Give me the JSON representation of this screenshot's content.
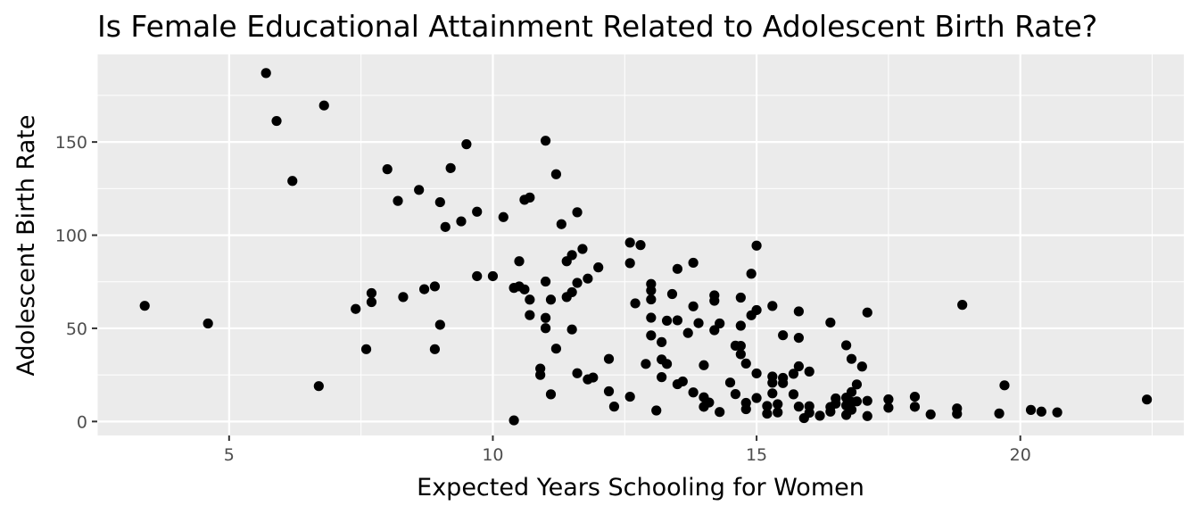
{
  "chart_data": {
    "type": "scatter",
    "title": "Is Female Educational Attainment Related to Adolescent Birth Rate?",
    "xlabel": "Expected Years Schooling for Women",
    "ylabel": "Adolescent Birth Rate",
    "xlim": [
      2.5,
      23.1
    ],
    "ylim": [
      -7.5,
      197
    ],
    "x_ticks": [
      5,
      10,
      15,
      20
    ],
    "y_ticks": [
      0,
      50,
      100,
      150
    ],
    "x_tick_labels": [
      "5",
      "10",
      "15",
      "20"
    ],
    "y_tick_labels": [
      "0",
      "50",
      "100",
      "150"
    ],
    "grid": true,
    "colors": {
      "panel": "#ebebeb",
      "grid": "#ffffff",
      "point": "#000000",
      "tick": "#333333",
      "tick_label": "#4d4d4d"
    },
    "points": [
      [
        3.4,
        62.1
      ],
      [
        4.6,
        52.6
      ],
      [
        5.7,
        187.0
      ],
      [
        5.9,
        161.3
      ],
      [
        6.2,
        129.1
      ],
      [
        6.8,
        169.6
      ],
      [
        6.7,
        19.0
      ],
      [
        7.4,
        60.4
      ],
      [
        7.6,
        38.8
      ],
      [
        7.7,
        68.9
      ],
      [
        7.7,
        64.1
      ],
      [
        8.0,
        135.4
      ],
      [
        8.2,
        118.4
      ],
      [
        8.3,
        66.8
      ],
      [
        8.6,
        124.3
      ],
      [
        8.7,
        71.0
      ],
      [
        8.9,
        72.5
      ],
      [
        8.9,
        38.8
      ],
      [
        9.0,
        117.7
      ],
      [
        9.0,
        51.9
      ],
      [
        9.1,
        104.4
      ],
      [
        9.2,
        136.0
      ],
      [
        9.4,
        107.4
      ],
      [
        9.5,
        148.8
      ],
      [
        9.7,
        112.6
      ],
      [
        9.7,
        78.0
      ],
      [
        10.0,
        78.0
      ],
      [
        10.2,
        109.7
      ],
      [
        10.4,
        71.7
      ],
      [
        10.4,
        0.6
      ],
      [
        10.5,
        86.0
      ],
      [
        10.5,
        72.5
      ],
      [
        10.6,
        70.9
      ],
      [
        10.6,
        119.0
      ],
      [
        10.7,
        120.2
      ],
      [
        10.7,
        65.4
      ],
      [
        10.7,
        57.1
      ],
      [
        11.0,
        150.7
      ],
      [
        11.0,
        75.1
      ],
      [
        11.0,
        55.6
      ],
      [
        11.0,
        50.1
      ],
      [
        10.9,
        28.4
      ],
      [
        10.9,
        25.0
      ],
      [
        11.1,
        65.4
      ],
      [
        11.1,
        14.6
      ],
      [
        11.2,
        132.7
      ],
      [
        11.2,
        39.1
      ],
      [
        11.3,
        105.9
      ],
      [
        11.4,
        66.8
      ],
      [
        11.4,
        86.0
      ],
      [
        11.5,
        89.3
      ],
      [
        11.5,
        69.4
      ],
      [
        11.5,
        49.4
      ],
      [
        11.6,
        112.3
      ],
      [
        11.6,
        74.4
      ],
      [
        11.6,
        25.9
      ],
      [
        11.7,
        92.6
      ],
      [
        11.8,
        76.7
      ],
      [
        11.8,
        22.6
      ],
      [
        11.9,
        23.6
      ],
      [
        12.0,
        82.7
      ],
      [
        12.2,
        33.6
      ],
      [
        12.2,
        16.2
      ],
      [
        12.3,
        8.0
      ],
      [
        12.6,
        96.0
      ],
      [
        12.6,
        85.0
      ],
      [
        12.6,
        13.3
      ],
      [
        12.7,
        63.4
      ],
      [
        12.8,
        94.7
      ],
      [
        12.9,
        30.9
      ],
      [
        13.0,
        73.8
      ],
      [
        13.0,
        70.3
      ],
      [
        13.0,
        65.5
      ],
      [
        13.0,
        55.7
      ],
      [
        13.0,
        46.2
      ],
      [
        13.1,
        5.9
      ],
      [
        13.2,
        42.6
      ],
      [
        13.2,
        33.3
      ],
      [
        13.2,
        23.8
      ],
      [
        13.3,
        54.1
      ],
      [
        13.3,
        30.9
      ],
      [
        13.4,
        68.4
      ],
      [
        13.5,
        81.9
      ],
      [
        13.5,
        54.3
      ],
      [
        13.5,
        20.0
      ],
      [
        13.6,
        21.5
      ],
      [
        13.7,
        47.5
      ],
      [
        13.8,
        85.2
      ],
      [
        13.8,
        61.8
      ],
      [
        13.8,
        15.6
      ],
      [
        13.9,
        52.8
      ],
      [
        14.0,
        30.2
      ],
      [
        14.0,
        13.0
      ],
      [
        14.0,
        7.9
      ],
      [
        14.1,
        10.2
      ],
      [
        14.2,
        67.7
      ],
      [
        14.2,
        64.8
      ],
      [
        14.2,
        49.0
      ],
      [
        14.3,
        52.6
      ],
      [
        14.3,
        5.1
      ],
      [
        14.5,
        20.9
      ],
      [
        14.6,
        40.7
      ],
      [
        14.6,
        14.7
      ],
      [
        14.7,
        66.5
      ],
      [
        14.7,
        51.4
      ],
      [
        14.7,
        40.6
      ],
      [
        14.7,
        36.1
      ],
      [
        14.8,
        31.1
      ],
      [
        14.8,
        10.0
      ],
      [
        14.8,
        6.6
      ],
      [
        14.9,
        79.3
      ],
      [
        14.9,
        57.0
      ],
      [
        15.0,
        94.4
      ],
      [
        15.0,
        59.8
      ],
      [
        15.0,
        25.8
      ],
      [
        15.0,
        12.6
      ],
      [
        15.2,
        8.3
      ],
      [
        15.2,
        4.2
      ],
      [
        15.3,
        62.0
      ],
      [
        15.3,
        24.1
      ],
      [
        15.3,
        20.8
      ],
      [
        15.3,
        15.1
      ],
      [
        15.4,
        9.3
      ],
      [
        15.4,
        4.9
      ],
      [
        15.5,
        46.3
      ],
      [
        15.5,
        23.4
      ],
      [
        15.5,
        20.6
      ],
      [
        15.7,
        25.6
      ],
      [
        15.7,
        14.6
      ],
      [
        15.8,
        59.1
      ],
      [
        15.8,
        44.9
      ],
      [
        15.8,
        29.6
      ],
      [
        15.8,
        8.0
      ],
      [
        15.9,
        1.8
      ],
      [
        16.0,
        26.8
      ],
      [
        16.0,
        8.2
      ],
      [
        16.0,
        4.7
      ],
      [
        16.2,
        3.1
      ],
      [
        16.4,
        53.1
      ],
      [
        16.4,
        7.8
      ],
      [
        16.4,
        5.3
      ],
      [
        16.5,
        12.4
      ],
      [
        16.5,
        9.6
      ],
      [
        16.7,
        40.9
      ],
      [
        16.7,
        12.8
      ],
      [
        16.7,
        8.6
      ],
      [
        16.7,
        3.5
      ],
      [
        16.8,
        33.6
      ],
      [
        16.8,
        15.8
      ],
      [
        16.8,
        10.5
      ],
      [
        16.8,
        6.3
      ],
      [
        16.9,
        19.9
      ],
      [
        16.9,
        10.8
      ],
      [
        17.0,
        29.5
      ],
      [
        17.1,
        58.5
      ],
      [
        17.1,
        11.1
      ],
      [
        17.1,
        2.9
      ],
      [
        17.5,
        11.9
      ],
      [
        17.5,
        7.4
      ],
      [
        18.0,
        13.3
      ],
      [
        18.0,
        7.9
      ],
      [
        18.3,
        3.8
      ],
      [
        18.8,
        7.0
      ],
      [
        18.8,
        4.1
      ],
      [
        18.9,
        62.6
      ],
      [
        19.6,
        4.3
      ],
      [
        19.7,
        19.4
      ],
      [
        20.2,
        6.2
      ],
      [
        20.4,
        5.3
      ],
      [
        20.7,
        4.9
      ],
      [
        22.4,
        11.8
      ]
    ]
  }
}
